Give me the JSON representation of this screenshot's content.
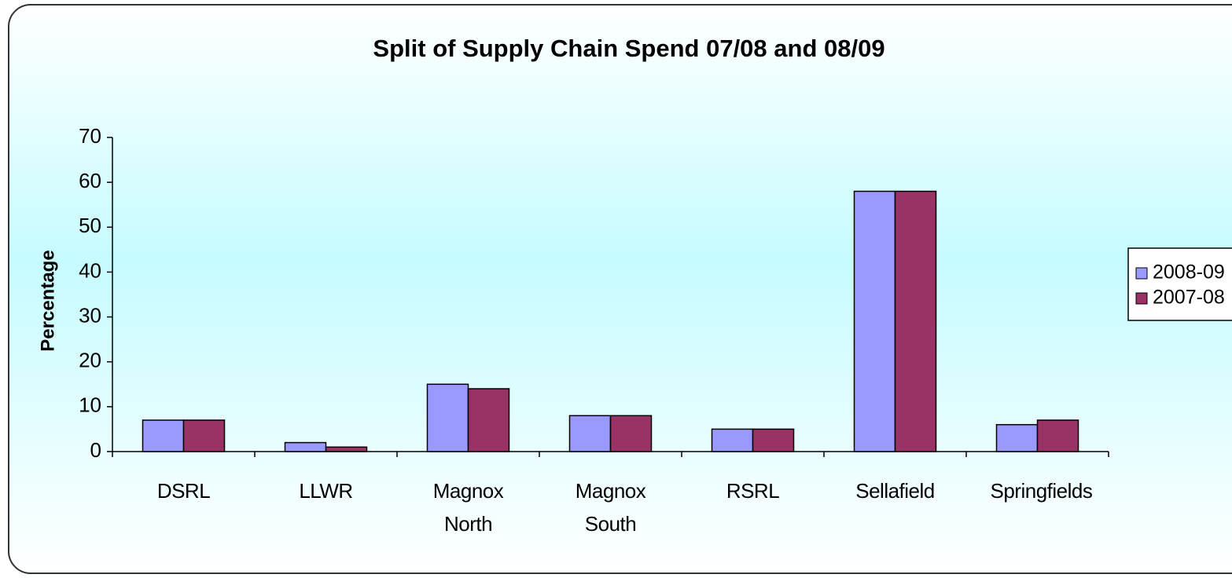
{
  "chart_data": {
    "type": "bar",
    "title": "Split of Supply Chain Spend 07/08 and 08/09",
    "y_label": "Percentage",
    "categories": [
      "DSRL",
      "LLWR",
      "Magnox North",
      "Magnox South",
      "RSRL",
      "Sellafield",
      "Springfields"
    ],
    "series": [
      {
        "name": "2008-09",
        "color": "#9999ff",
        "values": [
          7,
          2,
          15,
          8,
          5,
          58,
          6
        ]
      },
      {
        "name": "2007-08",
        "color": "#993366",
        "values": [
          7,
          1,
          14,
          8,
          5,
          58,
          7
        ]
      }
    ],
    "ylim": [
      0,
      70
    ],
    "yticks": [
      0,
      10,
      20,
      30,
      40,
      50,
      60,
      70
    ],
    "grid": false,
    "legend": "right"
  }
}
